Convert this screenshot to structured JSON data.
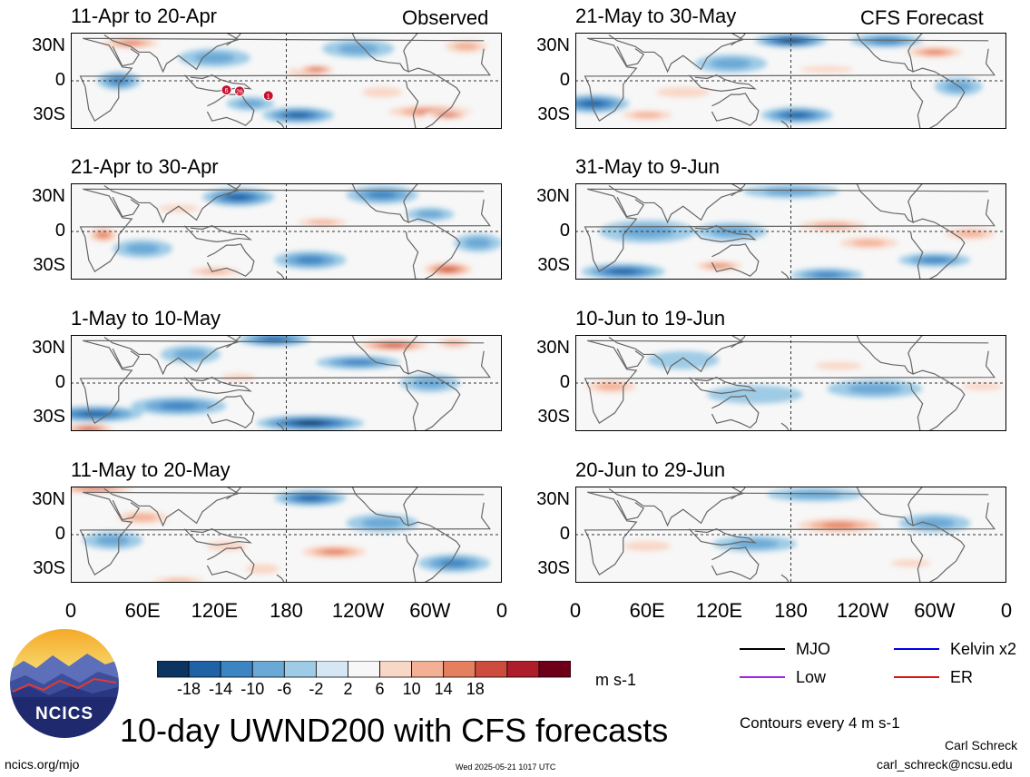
{
  "column_labels": {
    "left": "Observed",
    "right": "CFS Forecast"
  },
  "latitude_labels": [
    "30N",
    "0",
    "30S"
  ],
  "longitude_labels": [
    "0",
    "60E",
    "120E",
    "180",
    "120W",
    "60W",
    "0"
  ],
  "colorbar": {
    "colors": [
      "#0b3560",
      "#1f62a6",
      "#3d84c2",
      "#6aa8d6",
      "#9ecbe6",
      "#d4e7f2",
      "#f7f7f7",
      "#f9d7c6",
      "#f3b094",
      "#e4805f",
      "#cd4c3e",
      "#ae1d2a",
      "#6d0018"
    ],
    "tick_labels": [
      "-18",
      "-14",
      "-10",
      "-6",
      "-2",
      "2",
      "6",
      "10",
      "14",
      "18"
    ],
    "units": "m s-1"
  },
  "legend": {
    "items": [
      {
        "label": "MJO",
        "color": "#000000"
      },
      {
        "label": "Kelvin x2",
        "color": "#0000ee"
      },
      {
        "label": "Low",
        "color": "#a020f0"
      },
      {
        "label": "ER",
        "color": "#dd1111"
      }
    ],
    "contour_note": "Contours every 4 m s-1"
  },
  "title": "10-day UWND200 with CFS forecasts",
  "logo_text": "NCICS",
  "footer": {
    "url": "ncics.org/mjo",
    "timestamp": "Wed 2025-05-21 1017 UTC",
    "author": "Carl Schreck",
    "email": "carl_schreck@ncsu.edu"
  },
  "storm_markers": [
    "6",
    "26",
    "1"
  ],
  "chart_data": [
    {
      "type": "heatmap",
      "variable": "200-hPa zonal wind anomaly",
      "units": "m s-1",
      "period": "11-Apr to 20-Apr",
      "source": "Observed",
      "features": [
        {
          "lon": 200,
          "lat": 8,
          "value": 14
        },
        {
          "lon": 300,
          "lat": -27,
          "value": 14
        },
        {
          "lon": 50,
          "lat": 33,
          "value": 14
        },
        {
          "lon": 190,
          "lat": -30,
          "value": -14
        },
        {
          "lon": 40,
          "lat": 0,
          "value": -10
        },
        {
          "lon": 240,
          "lat": 28,
          "value": -8
        }
      ]
    },
    {
      "type": "heatmap",
      "variable": "200-hPa zonal wind anomaly",
      "units": "m s-1",
      "period": "21-Apr to 30-Apr",
      "source": "Observed",
      "features": [
        {
          "lon": 27,
          "lat": -3,
          "value": 14
        },
        {
          "lon": 315,
          "lat": -33,
          "value": 18
        },
        {
          "lon": 120,
          "lat": -35,
          "value": 10
        },
        {
          "lon": 140,
          "lat": 30,
          "value": -14
        },
        {
          "lon": 260,
          "lat": 32,
          "value": -10
        },
        {
          "lon": 210,
          "lat": 8,
          "value": 10
        }
      ]
    },
    {
      "type": "heatmap",
      "variable": "200-hPa zonal wind anomaly",
      "units": "m s-1",
      "period": "1-May to 10-May",
      "source": "Observed",
      "features": [
        {
          "lon": 270,
          "lat": 33,
          "value": 18
        },
        {
          "lon": 15,
          "lat": -40,
          "value": 18
        },
        {
          "lon": 200,
          "lat": -35,
          "value": -18
        },
        {
          "lon": 20,
          "lat": -27,
          "value": -14
        },
        {
          "lon": 170,
          "lat": 38,
          "value": -14
        },
        {
          "lon": 240,
          "lat": 18,
          "value": -10
        }
      ]
    },
    {
      "type": "heatmap",
      "variable": "200-hPa zonal wind anomaly",
      "units": "m s-1",
      "period": "11-May to 20-May",
      "source": "Observed",
      "features": [
        {
          "lon": 20,
          "lat": 40,
          "value": 18
        },
        {
          "lon": 220,
          "lat": -15,
          "value": 14
        },
        {
          "lon": 90,
          "lat": -40,
          "value": 10
        },
        {
          "lon": 200,
          "lat": 32,
          "value": -14
        },
        {
          "lon": 35,
          "lat": -5,
          "value": -6
        }
      ]
    },
    {
      "type": "heatmap",
      "variable": "200-hPa zonal wind anomaly",
      "units": "m s-1",
      "period": "21-May to 30-May",
      "source": "CFS Forecast",
      "features": [
        {
          "lon": 180,
          "lat": 35,
          "value": -18
        },
        {
          "lon": 15,
          "lat": -20,
          "value": -14
        },
        {
          "lon": 185,
          "lat": -30,
          "value": -14
        },
        {
          "lon": 60,
          "lat": -30,
          "value": 10
        },
        {
          "lon": 260,
          "lat": 35,
          "value": -10
        },
        {
          "lon": 210,
          "lat": 10,
          "value": 8
        }
      ]
    },
    {
      "type": "heatmap",
      "variable": "200-hPa zonal wind anomaly",
      "units": "m s-1",
      "period": "31-May to 9-Jun",
      "source": "CFS Forecast",
      "features": [
        {
          "lon": 215,
          "lat": 5,
          "value": 10
        },
        {
          "lon": 245,
          "lat": -10,
          "value": 10
        },
        {
          "lon": 120,
          "lat": -30,
          "value": 14
        },
        {
          "lon": 330,
          "lat": -2,
          "value": 10
        },
        {
          "lon": 40,
          "lat": -35,
          "value": -14
        },
        {
          "lon": 210,
          "lat": -38,
          "value": -10
        },
        {
          "lon": 180,
          "lat": 35,
          "value": -8
        }
      ]
    },
    {
      "type": "heatmap",
      "variable": "200-hPa zonal wind anomaly",
      "units": "m s-1",
      "period": "10-Jun to 19-Jun",
      "source": "CFS Forecast",
      "features": [
        {
          "lon": 30,
          "lat": -3,
          "value": 10
        },
        {
          "lon": 340,
          "lat": -3,
          "value": 6
        },
        {
          "lon": 220,
          "lat": 15,
          "value": 6
        },
        {
          "lon": 250,
          "lat": -5,
          "value": -6
        }
      ]
    },
    {
      "type": "heatmap",
      "variable": "200-hPa zonal wind anomaly",
      "units": "m s-1",
      "period": "20-Jun to 29-Jun",
      "source": "CFS Forecast",
      "features": [
        {
          "lon": 220,
          "lat": 8,
          "value": 14
        },
        {
          "lon": 60,
          "lat": -10,
          "value": 6
        },
        {
          "lon": 150,
          "lat": -8,
          "value": -6
        },
        {
          "lon": 200,
          "lat": 35,
          "value": -6
        }
      ]
    }
  ]
}
